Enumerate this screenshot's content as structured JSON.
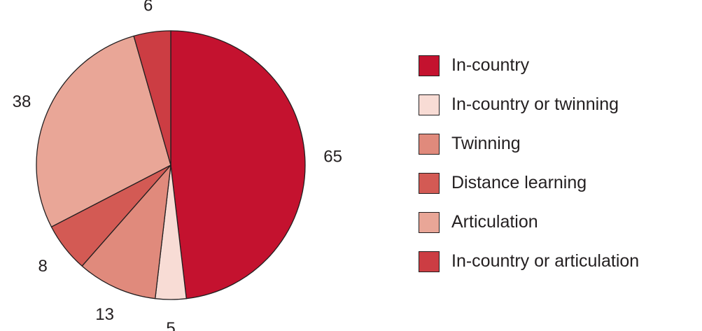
{
  "chart_data": {
    "type": "pie",
    "title": "",
    "slices": [
      {
        "label": "In-country",
        "value": 65,
        "color": "#c4122f"
      },
      {
        "label": "In-country or twinning",
        "value": 5,
        "color": "#f8dcd5"
      },
      {
        "label": "Twinning",
        "value": 13,
        "color": "#e08a7c"
      },
      {
        "label": "Distance learning",
        "value": 8,
        "color": "#d35a54"
      },
      {
        "label": "Articulation",
        "value": 38,
        "color": "#e9a697"
      },
      {
        "label": "In-country or articulation",
        "value": 6,
        "color": "#cc3d43"
      }
    ],
    "start_angle_deg": 0,
    "direction": "clockwise",
    "legend_position": "right",
    "outline_color": "#231f20"
  }
}
